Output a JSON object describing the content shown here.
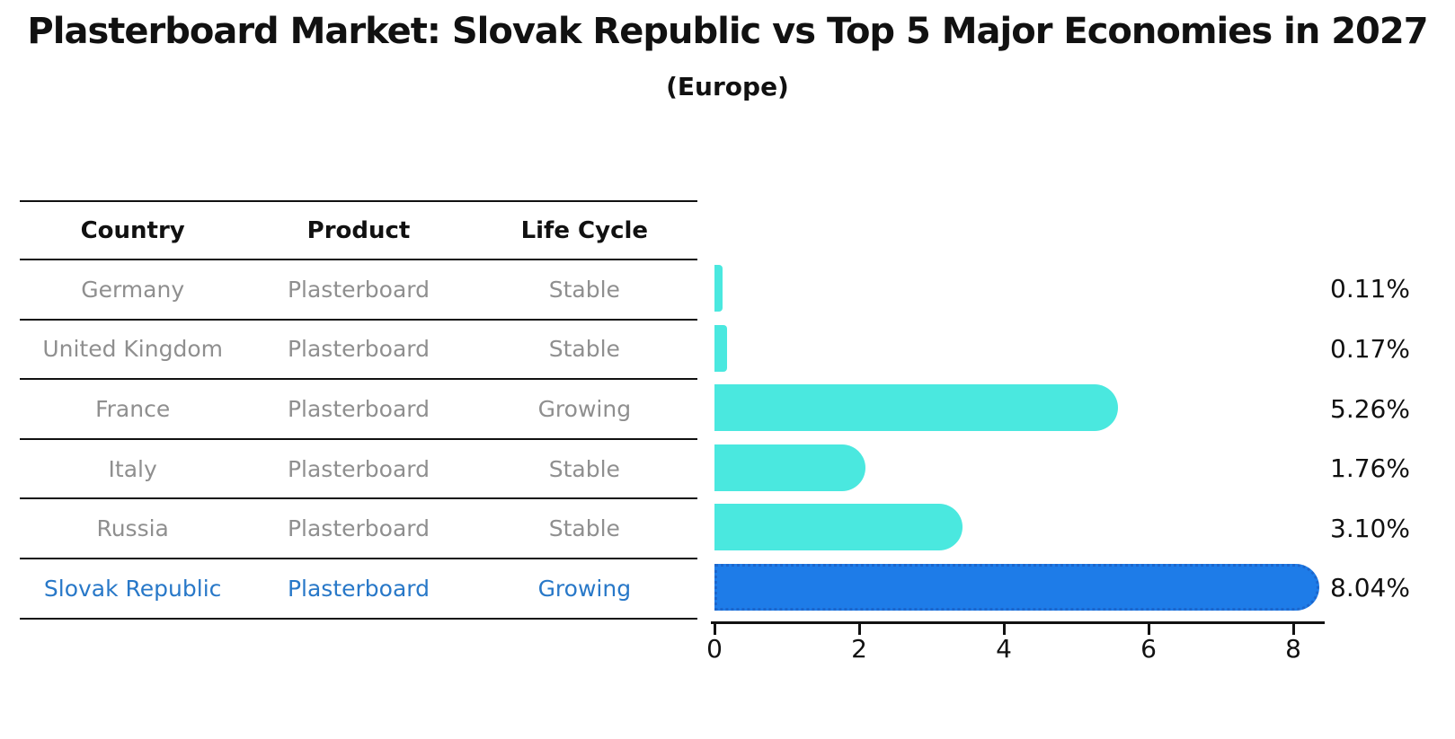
{
  "title": "Plasterboard Market: Slovak Republic vs Top 5 Major Economies in 2027",
  "subtitle": "(Europe)",
  "table": {
    "headers": [
      "Country",
      "Product",
      "Life Cycle"
    ],
    "rows": [
      {
        "country": "Germany",
        "product": "Plasterboard",
        "life_cycle": "Stable",
        "highlight": false
      },
      {
        "country": "United Kingdom",
        "product": "Plasterboard",
        "life_cycle": "Stable",
        "highlight": false
      },
      {
        "country": "France",
        "product": "Plasterboard",
        "life_cycle": "Growing",
        "highlight": false
      },
      {
        "country": "Italy",
        "product": "Plasterboard",
        "life_cycle": "Stable",
        "highlight": false
      },
      {
        "country": "Russia",
        "product": "Plasterboard",
        "life_cycle": "Stable",
        "highlight": false
      },
      {
        "country": "Slovak Republic",
        "product": "Plasterboard",
        "life_cycle": "Growing",
        "highlight": true
      }
    ]
  },
  "chart_data": {
    "type": "bar",
    "orientation": "horizontal",
    "title": "Plasterboard Market: Slovak Republic vs Top 5 Major Economies in 2027",
    "subtitle": "(Europe)",
    "categories": [
      "Germany",
      "United Kingdom",
      "France",
      "Italy",
      "Russia",
      "Slovak Republic"
    ],
    "values": [
      0.11,
      0.17,
      5.26,
      1.76,
      3.1,
      8.04
    ],
    "value_labels": [
      "0.11%",
      "0.17%",
      "5.26%",
      "1.76%",
      "3.10%",
      "8.04%"
    ],
    "highlight_index": 5,
    "x_ticks": [
      "0",
      "2",
      "4",
      "6",
      "8"
    ],
    "x_tick_values": [
      0,
      2,
      4,
      6,
      8
    ],
    "xlim": [
      0,
      8.45
    ],
    "grid": false,
    "legend": false
  },
  "colors": {
    "bar_default": "#4AE8DF",
    "bar_highlight": "#1E7CE8",
    "bar_highlight_border": "#1C66CC",
    "row_text": "#8F8F8F",
    "highlight_text": "#2878C8",
    "axis": "#111111"
  }
}
